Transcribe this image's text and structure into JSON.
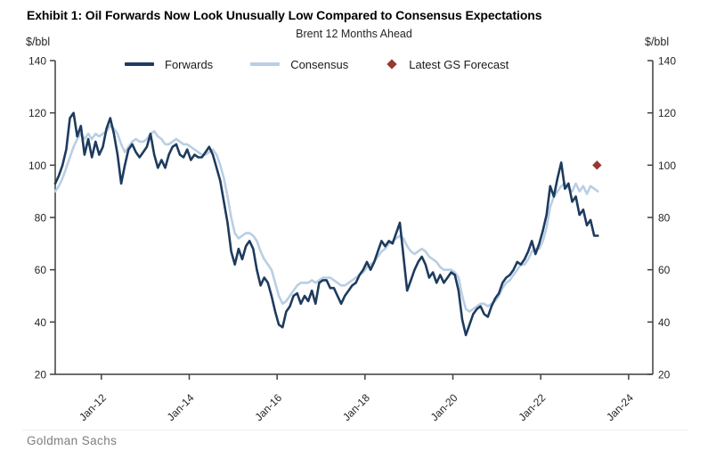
{
  "page": {
    "title": "Exhibit 1: Oil Forwards Now Look Unusually Low Compared to Consensus Expectations",
    "source": "Goldman Sachs"
  },
  "chart_data": {
    "type": "line",
    "title": "Brent 12 Months Ahead",
    "y_unit_left": "$/bbl",
    "y_unit_right": "$/bbl",
    "ylim": [
      20,
      140
    ],
    "y_ticks": [
      20,
      40,
      60,
      80,
      100,
      120,
      140
    ],
    "xlim_years": [
      2010.95,
      2024.55
    ],
    "x_ticks": [
      {
        "t": 2012,
        "label": "Jan-12"
      },
      {
        "t": 2014,
        "label": "Jan-14"
      },
      {
        "t": 2016,
        "label": "Jan-16"
      },
      {
        "t": 2018,
        "label": "Jan-18"
      },
      {
        "t": 2020,
        "label": "Jan-20"
      },
      {
        "t": 2022,
        "label": "Jan-22"
      },
      {
        "t": 2024,
        "label": "Jan-24"
      }
    ],
    "grid": false,
    "legend_position": "top-inside",
    "axis_color": "#3f3f3f",
    "series": [
      {
        "name": "Forwards",
        "color": "#1D3B5E",
        "line_width": 2.6,
        "t_start": 2010.95,
        "t_end": 2023.3,
        "values": [
          93,
          96,
          100,
          106,
          118,
          120,
          111,
          115,
          104,
          110,
          103,
          109,
          104,
          107,
          114,
          118,
          112,
          104,
          93,
          100,
          106,
          108,
          105,
          103,
          105,
          107,
          112,
          104,
          99,
          102,
          99,
          104,
          107,
          108,
          104,
          103,
          106,
          102,
          104,
          103,
          103,
          105,
          107,
          104,
          99,
          94,
          86,
          78,
          67,
          62,
          68,
          64,
          69,
          71,
          68,
          60,
          54,
          57,
          55,
          50,
          44,
          39,
          38,
          44,
          46,
          50,
          51,
          47,
          50,
          48,
          52,
          47,
          55,
          56,
          56,
          53,
          53,
          50,
          47,
          50,
          52,
          54,
          55,
          58,
          60,
          63,
          60,
          63,
          67,
          71,
          69,
          71,
          70,
          74,
          78,
          65,
          52,
          56,
          60,
          63,
          65,
          62,
          57,
          59,
          55,
          58,
          55,
          57,
          59,
          58,
          52,
          41,
          35,
          39,
          43,
          45,
          46,
          43,
          42,
          46,
          49,
          51,
          55,
          57,
          58,
          60,
          63,
          62,
          64,
          67,
          71,
          66,
          70,
          75,
          81,
          92,
          88,
          95,
          101,
          91,
          93,
          86,
          88,
          81,
          83,
          77,
          79,
          73,
          73
        ]
      },
      {
        "name": "Consensus",
        "color": "#B9CEE4",
        "line_width": 2.6,
        "t_start": 2010.95,
        "t_end": 2023.3,
        "values": [
          90,
          92,
          95,
          99,
          103,
          107,
          110,
          112,
          110,
          112,
          110,
          112,
          111,
          112,
          113,
          115,
          114,
          112,
          108,
          105,
          107,
          109,
          110,
          109,
          109,
          110,
          112,
          113,
          111,
          110,
          108,
          108,
          109,
          110,
          109,
          108,
          108,
          107,
          106,
          105,
          104,
          104,
          105,
          106,
          104,
          100,
          95,
          88,
          80,
          74,
          72,
          73,
          74,
          74,
          73,
          71,
          67,
          64,
          62,
          60,
          55,
          50,
          47,
          48,
          50,
          52,
          54,
          55,
          55,
          55,
          56,
          55,
          56,
          57,
          57,
          57,
          56,
          55,
          54,
          54,
          55,
          56,
          57,
          58,
          59,
          61,
          62,
          63,
          65,
          67,
          68,
          70,
          71,
          72,
          73,
          72,
          69,
          67,
          66,
          67,
          68,
          67,
          65,
          64,
          63,
          61,
          60,
          60,
          60,
          59,
          57,
          50,
          45,
          44,
          45,
          46,
          47,
          47,
          46,
          47,
          48,
          50,
          53,
          55,
          56,
          58,
          60,
          62,
          62,
          64,
          67,
          68,
          68,
          71,
          76,
          84,
          88,
          90,
          92,
          93,
          91,
          90,
          93,
          90,
          92,
          89,
          92,
          91,
          90
        ]
      }
    ],
    "forecast_point": {
      "name": "Latest GS Forecast",
      "color": "#973831",
      "t": 2023.28,
      "value": 100
    }
  }
}
